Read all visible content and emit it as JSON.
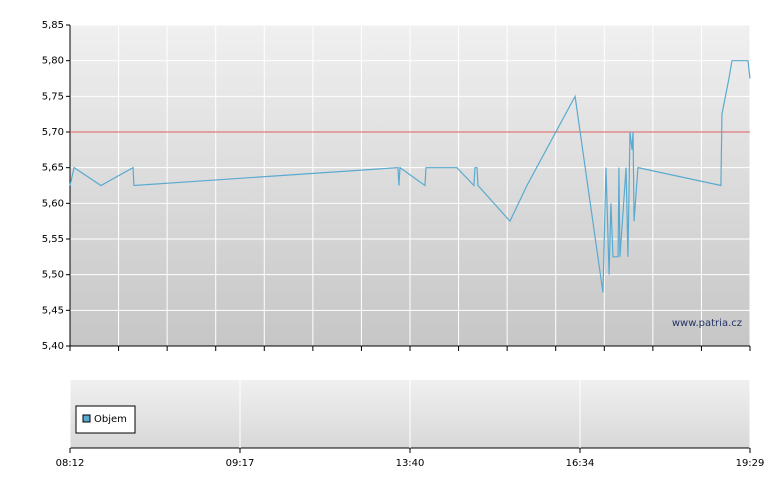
{
  "chart_data": {
    "type": "line",
    "x": [
      0,
      0.024,
      0.182,
      0.371,
      0.376,
      1.929,
      1.935,
      1.941,
      2.088,
      2.094,
      2.276,
      2.376,
      2.382,
      2.394,
      2.4,
      2.588,
      2.688,
      2.971,
      3.135,
      3.153,
      3.171,
      3.182,
      3.194,
      3.224,
      3.229,
      3.235,
      3.271,
      3.282,
      3.294,
      3.306,
      3.312,
      3.318,
      3.341,
      3.829,
      3.835,
      3.876,
      3.894,
      3.988,
      4
    ],
    "values": [
      5.625,
      5.65,
      5.625,
      5.65,
      5.625,
      5.65,
      5.625,
      5.65,
      5.625,
      5.65,
      5.65,
      5.625,
      5.65,
      5.65,
      5.625,
      5.575,
      5.625,
      5.75,
      5.475,
      5.65,
      5.5,
      5.6,
      5.525,
      5.525,
      5.65,
      5.525,
      5.65,
      5.525,
      5.7,
      5.675,
      5.7,
      5.575,
      5.65,
      5.625,
      5.725,
      5.775,
      5.8,
      5.8,
      5.775
    ],
    "color": "#5aaad0",
    "xlim": [
      0,
      4
    ],
    "xticks": [
      {
        "value": 0,
        "label": "08:12"
      },
      {
        "value": 1,
        "label": "09:17"
      },
      {
        "value": 2,
        "label": "13:40"
      },
      {
        "value": 3,
        "label": "16:34"
      },
      {
        "value": 4,
        "label": "19:29"
      }
    ],
    "ylim": [
      5.4,
      5.85
    ],
    "yticks": [
      {
        "value": 5.4,
        "label": "5,40"
      },
      {
        "value": 5.45,
        "label": "5,45"
      },
      {
        "value": 5.5,
        "label": "5,50"
      },
      {
        "value": 5.55,
        "label": "5,55"
      },
      {
        "value": 5.6,
        "label": "5,60"
      },
      {
        "value": 5.65,
        "label": "5,65"
      },
      {
        "value": 5.7,
        "label": "5,70"
      },
      {
        "value": 5.75,
        "label": "5,75"
      },
      {
        "value": 5.8,
        "label": "5,80"
      },
      {
        "value": 5.85,
        "label": "5,85"
      }
    ],
    "reference_line": {
      "value": 5.7,
      "color": "#e06060"
    },
    "watermark": "www.patria.cz",
    "legend": "Objem",
    "grid": true
  }
}
